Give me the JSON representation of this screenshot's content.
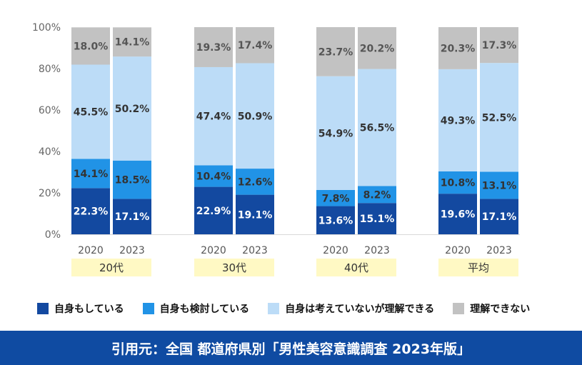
{
  "chart_data": {
    "type": "bar",
    "stacked": true,
    "y_axis": {
      "min": 0,
      "max": 100,
      "ticks": [
        "0%",
        "20%",
        "40%",
        "60%",
        "80%",
        "100%"
      ]
    },
    "groups": [
      {
        "label": "20代",
        "years": [
          "2020",
          "2023"
        ]
      },
      {
        "label": "30代",
        "years": [
          "2020",
          "2023"
        ]
      },
      {
        "label": "40代",
        "years": [
          "2020",
          "2023"
        ]
      },
      {
        "label": "平均",
        "years": [
          "2020",
          "2023"
        ]
      }
    ],
    "series": [
      {
        "name": "自身もしている",
        "color": "#1349a0",
        "label_color": "#ffffff",
        "values": [
          22.3,
          17.1,
          22.9,
          19.1,
          13.6,
          15.1,
          19.6,
          17.1
        ],
        "labels": [
          "22.3%",
          "17.1%",
          "22.9%",
          "19.1%",
          "13.6%",
          "15.1%",
          "19.6%",
          "17.1%"
        ]
      },
      {
        "name": "自身も検討している",
        "color": "#2193e6",
        "label_color": "#333333",
        "values": [
          14.1,
          18.5,
          10.4,
          12.6,
          7.8,
          8.2,
          10.8,
          13.1
        ],
        "labels": [
          "14.1%",
          "18.5%",
          "10.4%",
          "12.6%",
          "7.8%",
          "8.2%",
          "10.8%",
          "13.1%"
        ]
      },
      {
        "name": "自身は考えていないが理解できる",
        "color": "#bcdcf7",
        "label_color": "#333333",
        "values": [
          45.5,
          50.2,
          47.4,
          50.9,
          54.9,
          56.5,
          49.3,
          52.5
        ],
        "labels": [
          "45.5%",
          "50.2%",
          "47.4%",
          "50.9%",
          "54.9%",
          "56.5%",
          "49.3%",
          "52.5%"
        ]
      },
      {
        "name": "理解できない",
        "color": "#c2c2c2",
        "label_color": "#555555",
        "values": [
          18.0,
          14.1,
          19.3,
          17.4,
          23.7,
          20.2,
          20.3,
          17.3
        ],
        "labels": [
          "18.0%",
          "14.1%",
          "19.3%",
          "17.4%",
          "23.7%",
          "20.2%",
          "20.3%",
          "17.3%"
        ]
      }
    ],
    "group_label_bg": "#fff9c4"
  },
  "source_note": "引用元：全国 都道府県別「男性美容意識調査 2023年版」",
  "colors": {
    "footer_bg": "#0f4ba2"
  }
}
